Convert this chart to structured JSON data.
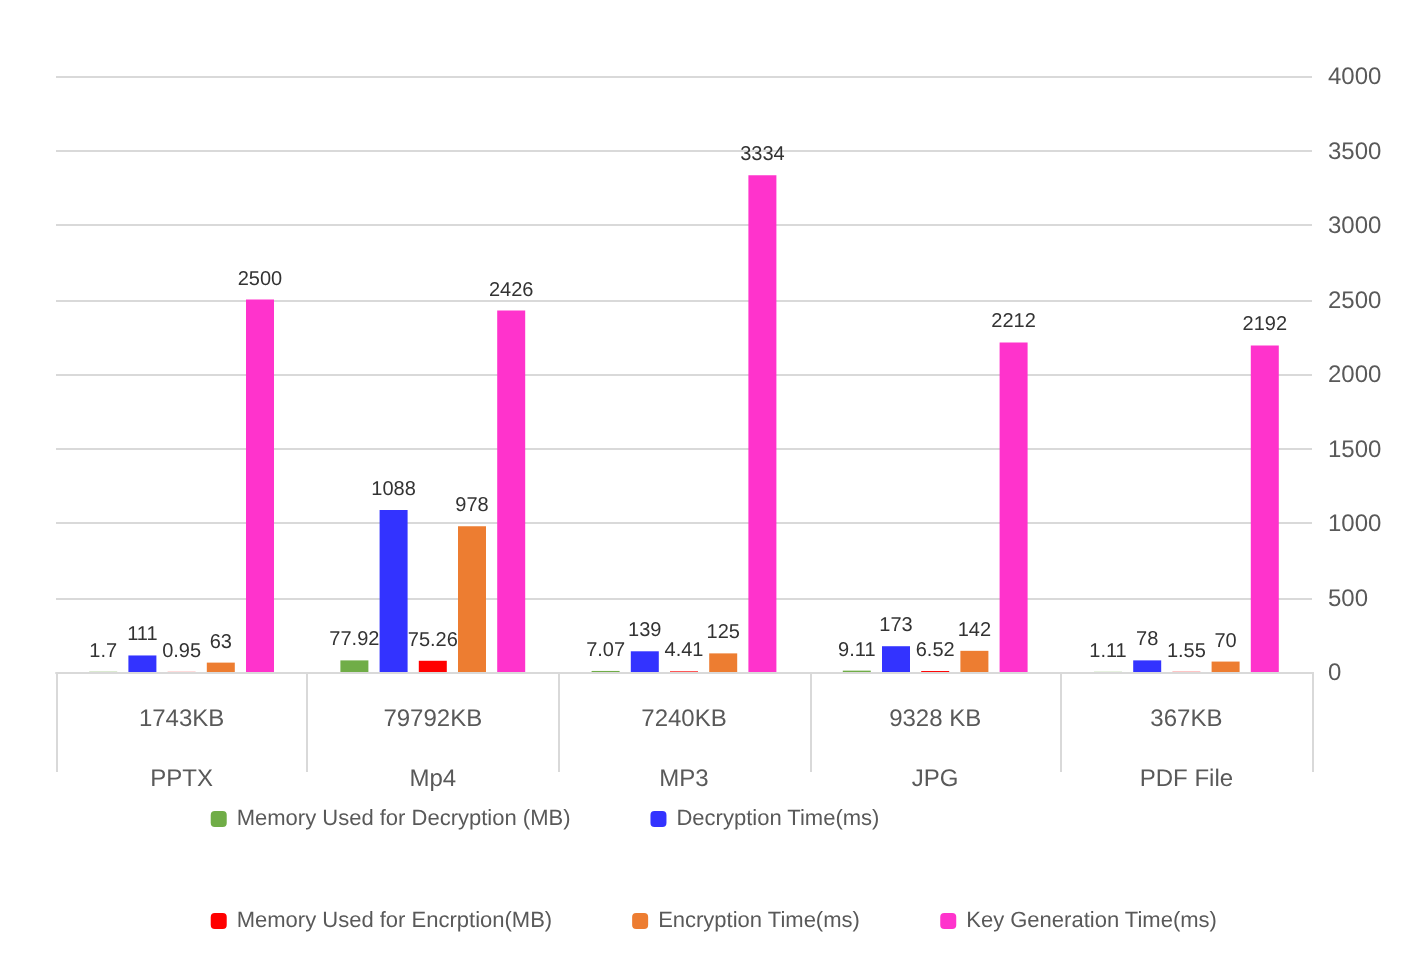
{
  "chart_data": {
    "type": "bar",
    "categories": [
      "1743KB\nPPTX",
      "79792KB\nMp4",
      "7240KB\nMP3",
      "9328 KB\nJPG",
      "367KB\nPDF File"
    ],
    "series": [
      {
        "name": "Memory Used for Decryption (MB)",
        "color": "#70ad47",
        "values": [
          1.7,
          77.92,
          7.07,
          9.11,
          1.11
        ]
      },
      {
        "name": "Decryption Time(ms)",
        "color": "#3333ff",
        "values": [
          111,
          1088,
          139,
          173,
          78
        ]
      },
      {
        "name": "Memory Used for Encrption(MB)",
        "color": "#ff0000",
        "values": [
          0.95,
          75.26,
          4.41,
          6.52,
          1.55
        ]
      },
      {
        "name": "Encryption Time(ms)",
        "color": "#ed7d31",
        "values": [
          63,
          978,
          125,
          142,
          70
        ]
      },
      {
        "name": "Key Generation Time(ms)",
        "color": "#ff33cc",
        "values": [
          2500,
          2426,
          3334,
          2212,
          2192
        ]
      }
    ],
    "ylim": [
      0,
      4000
    ],
    "yticks": [
      0,
      500,
      1000,
      1500,
      2000,
      2500,
      3000,
      3500,
      4000
    ],
    "grid": "y",
    "legend": "bottom",
    "data_labels": true
  }
}
